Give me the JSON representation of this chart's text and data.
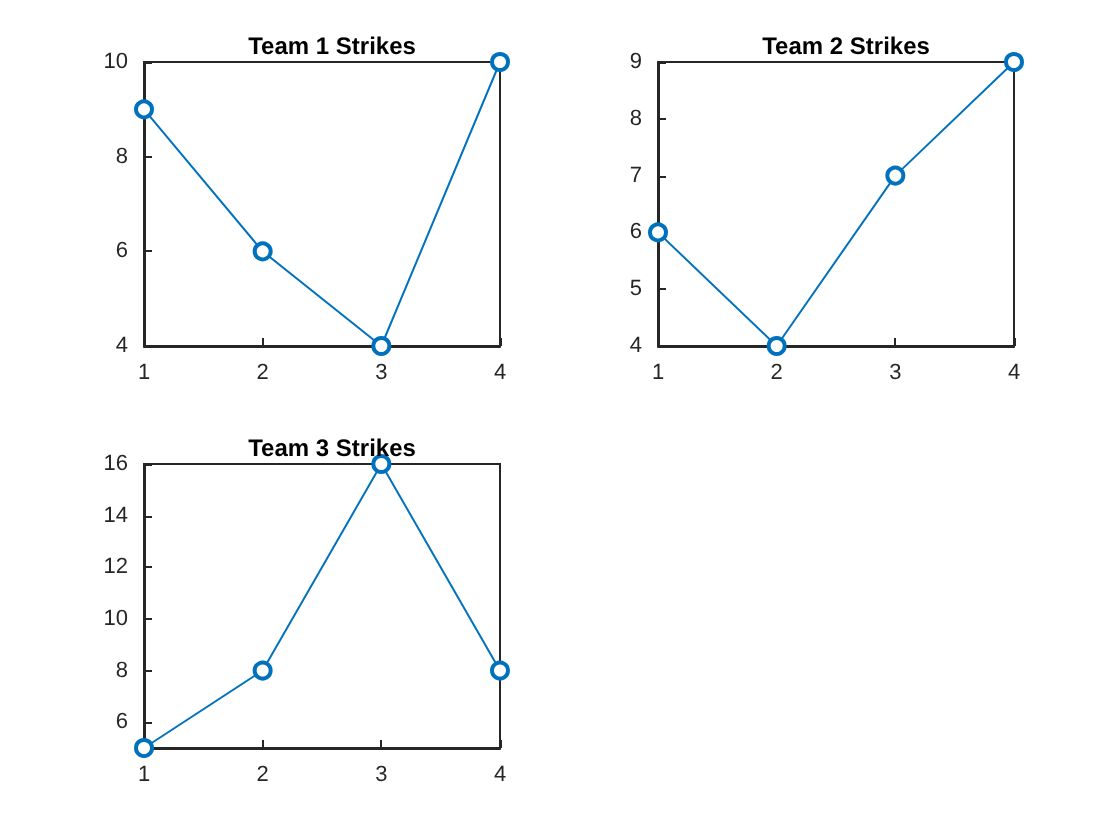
{
  "chart_data": [
    {
      "type": "line",
      "title": "Team 1 Strikes",
      "x": [
        1,
        2,
        3,
        4
      ],
      "values": [
        9,
        6,
        4,
        10
      ],
      "color": "#0072bd",
      "marker": "circle",
      "line_style": "solid",
      "xlim": [
        1,
        4
      ],
      "xticks": [
        1,
        2,
        3,
        4
      ],
      "ylim": [
        4,
        10
      ],
      "yticks": [
        4,
        6,
        8,
        10
      ]
    },
    {
      "type": "line",
      "title": "Team 2 Strikes",
      "x": [
        1,
        2,
        3,
        4
      ],
      "values": [
        6,
        4,
        7,
        9
      ],
      "color": "#0072bd",
      "marker": "circle",
      "line_style": "solid",
      "xlim": [
        1,
        4
      ],
      "xticks": [
        1,
        2,
        3,
        4
      ],
      "ylim": [
        4,
        9
      ],
      "yticks": [
        4,
        5,
        6,
        7,
        8,
        9
      ]
    },
    {
      "type": "line",
      "title": "Team 3 Strikes",
      "x": [
        1,
        2,
        3,
        4
      ],
      "values": [
        5,
        8,
        16,
        8
      ],
      "color": "#0072bd",
      "marker": "circle",
      "line_style": "solid",
      "xlim": [
        1,
        4
      ],
      "xticks": [
        1,
        2,
        3,
        4
      ],
      "ylim": [
        5,
        16
      ],
      "yticks": [
        6,
        8,
        10,
        12,
        14,
        16
      ]
    }
  ]
}
